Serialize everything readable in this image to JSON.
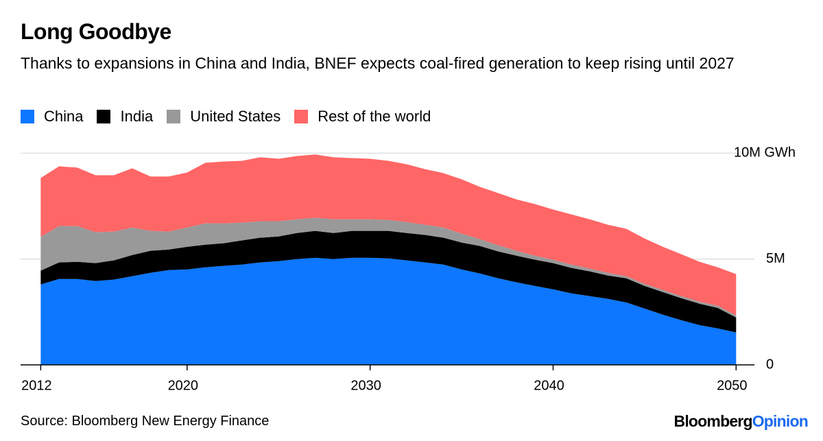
{
  "chart_data": {
    "type": "stacked_area",
    "title": "Long Goodbye",
    "subtitle": "Thanks to expansions in China and India, BNEF expects coal-fired generation to keep rising until 2027",
    "source": "Source: Bloomberg New Energy Finance",
    "brand": "Bloomberg",
    "brand_suffix": "Opinion",
    "x": [
      2012,
      2013,
      2014,
      2015,
      2016,
      2017,
      2018,
      2019,
      2020,
      2021,
      2022,
      2023,
      2024,
      2025,
      2026,
      2027,
      2028,
      2029,
      2030,
      2031,
      2032,
      2033,
      2034,
      2035,
      2036,
      2037,
      2038,
      2039,
      2040,
      2041,
      2042,
      2043,
      2044,
      2045,
      2046,
      2047,
      2048,
      2049,
      2050
    ],
    "xlim": [
      2010.9,
      2051
    ],
    "xticks": [
      2012,
      2020,
      2030,
      2040,
      2050
    ],
    "ylim": [
      0,
      10.5
    ],
    "yticks": [
      0,
      {
        "value": 5,
        "label": "5M"
      },
      {
        "value": 10,
        "label": "10M GWh"
      }
    ],
    "grid": true,
    "series": [
      {
        "name": "China",
        "color": "#0d77ff",
        "values": [
          3.8,
          4.06,
          4.06,
          3.96,
          4.03,
          4.19,
          4.35,
          4.48,
          4.51,
          4.61,
          4.68,
          4.74,
          4.84,
          4.9,
          5.0,
          5.06,
          5.0,
          5.06,
          5.06,
          5.03,
          4.94,
          4.84,
          4.74,
          4.51,
          4.32,
          4.09,
          3.9,
          3.73,
          3.57,
          3.38,
          3.25,
          3.12,
          2.95,
          2.66,
          2.37,
          2.11,
          1.88,
          1.72,
          1.53
        ]
      },
      {
        "name": "India",
        "color": "#000000",
        "values": [
          0.65,
          0.78,
          0.81,
          0.85,
          0.91,
          1.0,
          1.04,
          0.97,
          1.07,
          1.07,
          1.07,
          1.14,
          1.17,
          1.17,
          1.23,
          1.27,
          1.23,
          1.27,
          1.27,
          1.3,
          1.29,
          1.3,
          1.27,
          1.27,
          1.3,
          1.27,
          1.26,
          1.24,
          1.24,
          1.2,
          1.17,
          1.1,
          1.14,
          1.07,
          1.07,
          1.04,
          1.01,
          0.97,
          0.71
        ]
      },
      {
        "name": "United States",
        "color": "#999999",
        "values": [
          1.6,
          1.72,
          1.69,
          1.46,
          1.36,
          1.3,
          0.94,
          0.85,
          0.91,
          1.01,
          0.94,
          0.84,
          0.78,
          0.72,
          0.65,
          0.62,
          0.65,
          0.55,
          0.55,
          0.52,
          0.52,
          0.48,
          0.48,
          0.42,
          0.32,
          0.29,
          0.23,
          0.19,
          0.16,
          0.16,
          0.13,
          0.13,
          0.1,
          0.1,
          0.1,
          0.1,
          0.1,
          0.1,
          0.1
        ]
      },
      {
        "name": "Rest of the world",
        "color": "#ff6666",
        "values": [
          2.78,
          2.82,
          2.76,
          2.69,
          2.66,
          2.8,
          2.57,
          2.6,
          2.6,
          2.86,
          2.92,
          2.92,
          3.02,
          2.95,
          2.99,
          2.99,
          2.93,
          2.89,
          2.86,
          2.79,
          2.73,
          2.63,
          2.57,
          2.57,
          2.47,
          2.47,
          2.43,
          2.44,
          2.37,
          2.37,
          2.33,
          2.27,
          2.24,
          2.14,
          2.04,
          1.98,
          1.88,
          1.82,
          1.95
        ]
      }
    ]
  }
}
